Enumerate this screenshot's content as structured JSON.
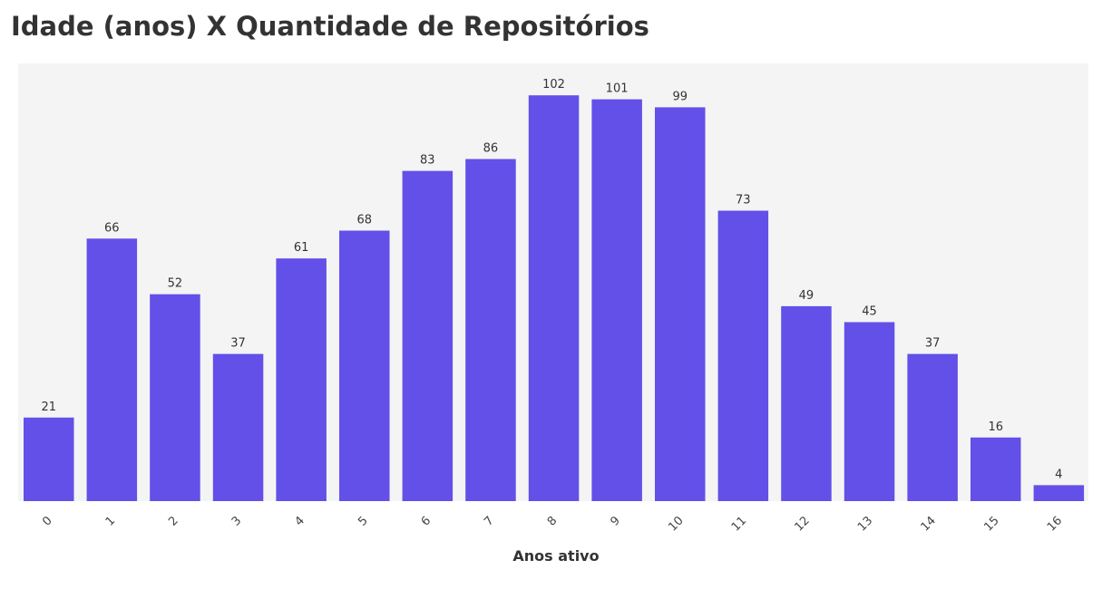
{
  "chart_data": {
    "type": "bar",
    "title": "Idade (anos) X Quantidade de Repositórios",
    "xlabel": "Anos ativo",
    "ylabel": "",
    "categories": [
      "0",
      "1",
      "2",
      "3",
      "4",
      "5",
      "6",
      "7",
      "8",
      "9",
      "10",
      "11",
      "12",
      "13",
      "14",
      "15",
      "16"
    ],
    "values": [
      21,
      66,
      52,
      37,
      61,
      68,
      83,
      86,
      102,
      101,
      99,
      73,
      49,
      45,
      37,
      16,
      4
    ],
    "ylim": [
      0,
      110
    ],
    "grid": false,
    "data_labels": true,
    "bar_color": "#6250E8",
    "background_color": "#F4F4F4"
  }
}
